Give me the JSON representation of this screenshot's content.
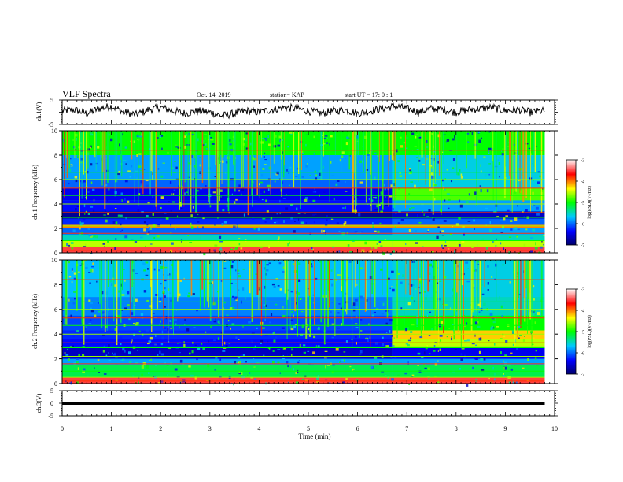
{
  "header": {
    "title": "VLF Spectra",
    "date": "Oct. 14, 2019",
    "station": "station= KAP",
    "start": "start  UT =   17: 0  : 1"
  },
  "colorbar": {
    "label": "log(PSD)(V²/Hz)",
    "ticks": [
      "-3",
      "-4",
      "-5",
      "-6",
      "-7"
    ],
    "colors": [
      "#ffffff",
      "#ff0000",
      "#ffff00",
      "#00ff00",
      "#00c8ff",
      "#0000ff",
      "#00006a"
    ]
  },
  "chart_data": [
    {
      "type": "line",
      "name": "ch1-waveform",
      "ylabel": "ch.1(V)",
      "ylim": [
        -5,
        5
      ],
      "y_ticks": [
        "5",
        "-5"
      ],
      "x": [
        0,
        0.25,
        0.5,
        0.75,
        1.0,
        1.25,
        1.5,
        1.75,
        2.0,
        2.25,
        2.5,
        2.75,
        3.0,
        3.25,
        3.5,
        3.75,
        4.0,
        4.25,
        4.5,
        4.75,
        5.0,
        5.25,
        5.5,
        5.75,
        6.0,
        6.25,
        6.5,
        6.75,
        7.0,
        7.25,
        7.5,
        7.75,
        8.0,
        8.25,
        8.5,
        8.75,
        9.0,
        9.25,
        9.5,
        9.8
      ],
      "values": [
        0.5,
        1.0,
        -0.5,
        1.5,
        2.5,
        0.0,
        -1.0,
        1.0,
        2.0,
        0.5,
        -0.5,
        0.5,
        0.0,
        -1.5,
        -0.5,
        0.5,
        0.0,
        1.0,
        2.0,
        1.5,
        0.5,
        -0.5,
        0.5,
        1.0,
        -0.5,
        0.5,
        1.5,
        2.5,
        1.5,
        0.0,
        1.5,
        1.0,
        0.0,
        1.0,
        1.5,
        2.0,
        0.5,
        1.0,
        0.0,
        0.5
      ]
    },
    {
      "type": "heatmap",
      "name": "ch1-spectrogram",
      "ylabel": "ch.1 Frequency (kHz)",
      "ylim": [
        0,
        10
      ],
      "y_ticks": [
        "0",
        "2",
        "4",
        "6",
        "8",
        "10"
      ],
      "xlim": [
        0,
        10
      ],
      "data_end_min": 9.8,
      "change_min": 6.7,
      "levels_log_psd": [
        {
          "f_khz": [
            0,
            0.5
          ],
          "before": -3.5,
          "after": -3.5
        },
        {
          "f_khz": [
            0.5,
            1.0
          ],
          "before": -4.5,
          "after": -4.5
        },
        {
          "f_khz": [
            1.0,
            1.5
          ],
          "before": -5.5,
          "after": -5.5
        },
        {
          "f_khz": [
            1.5,
            2.0
          ],
          "before": -6.0,
          "after": -5.8
        },
        {
          "f_khz": [
            2.0,
            2.3
          ],
          "before": -4.0,
          "after": -4.0
        },
        {
          "f_khz": [
            2.3,
            2.8
          ],
          "before": -6.2,
          "after": -6.0
        },
        {
          "f_khz": [
            2.8,
            3.4
          ],
          "before": -6.8,
          "after": -6.6
        },
        {
          "f_khz": [
            3.4,
            4.3
          ],
          "before": -6.3,
          "after": -5.8
        },
        {
          "f_khz": [
            4.3,
            5.3
          ],
          "before": -6.4,
          "after": -4.8
        },
        {
          "f_khz": [
            5.3,
            6.0
          ],
          "before": -6.0,
          "after": -5.6
        },
        {
          "f_khz": [
            6.0,
            8.0
          ],
          "before": -5.8,
          "after": -5.6
        },
        {
          "f_khz": [
            8.0,
            10.0
          ],
          "before": -5.0,
          "after": -5.0
        }
      ]
    },
    {
      "type": "heatmap",
      "name": "ch2-spectrogram",
      "ylabel": "ch.2 Frequency (kHz)",
      "ylim": [
        0,
        10
      ],
      "y_ticks": [
        "0",
        "2",
        "4",
        "6",
        "8",
        "10"
      ],
      "xlim": [
        0,
        10
      ],
      "data_end_min": 9.8,
      "change_min": 6.7,
      "levels_log_psd": [
        {
          "f_khz": [
            0,
            0.5
          ],
          "before": -3.5,
          "after": -3.5
        },
        {
          "f_khz": [
            0.5,
            1.5
          ],
          "before": -5.2,
          "after": -5.2
        },
        {
          "f_khz": [
            1.5,
            2.0
          ],
          "before": -5.8,
          "after": -5.8
        },
        {
          "f_khz": [
            2.0,
            3.0
          ],
          "before": -6.6,
          "after": -6.4
        },
        {
          "f_khz": [
            3.0,
            3.6
          ],
          "before": -6.3,
          "after": -4.5
        },
        {
          "f_khz": [
            3.6,
            4.3
          ],
          "before": -6.2,
          "after": -4.2
        },
        {
          "f_khz": [
            4.3,
            5.5
          ],
          "before": -6.1,
          "after": -5.0
        },
        {
          "f_khz": [
            5.5,
            7.0
          ],
          "before": -5.9,
          "after": -5.5
        },
        {
          "f_khz": [
            7.0,
            10.0
          ],
          "before": -5.7,
          "after": -5.6
        }
      ]
    },
    {
      "type": "line",
      "name": "ch3-waveform",
      "ylabel": "ch.3(V)",
      "ylim": [
        -5,
        5
      ],
      "y_ticks": [
        "5",
        "0",
        "-5"
      ],
      "x": [
        0,
        9.8
      ],
      "values": [
        0,
        0
      ]
    }
  ],
  "xaxis": {
    "label": "Time  (min)",
    "ticks": [
      "0",
      "1",
      "2",
      "3",
      "4",
      "5",
      "6",
      "7",
      "8",
      "9",
      "10"
    ],
    "xlim": [
      0,
      10
    ]
  }
}
